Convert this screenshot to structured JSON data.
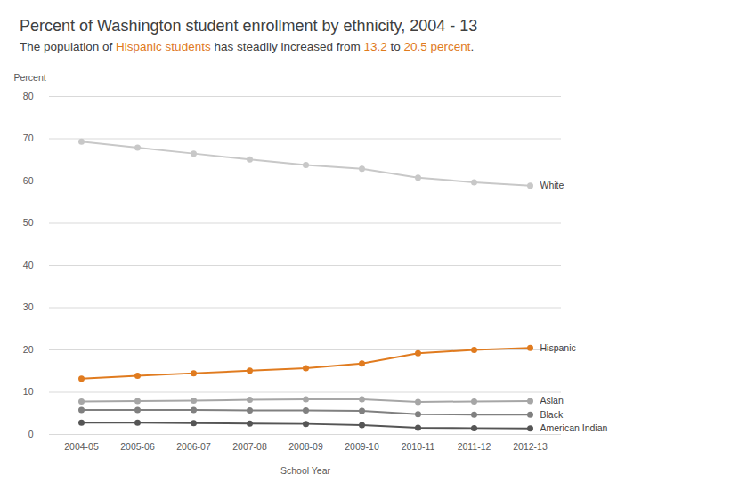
{
  "chart_data": {
    "type": "line",
    "title": "Percent of Washington student enrollment by ethnicity, 2004 - 13",
    "subtitle": [
      {
        "text": "The population of "
      },
      {
        "text": "Hispanic students",
        "color": "#e07b1f"
      },
      {
        "text": " has steadily increased from "
      },
      {
        "text": "13.2",
        "color": "#e07b1f"
      },
      {
        "text": " to "
      },
      {
        "text": "20.5 percent",
        "color": "#e07b1f"
      },
      {
        "text": "."
      }
    ],
    "x_label": "School Year",
    "y_label": "Percent",
    "categories": [
      "2004-05",
      "2005-06",
      "2006-07",
      "2007-08",
      "2008-09",
      "2009-10",
      "2010-11",
      "2011-12",
      "2012-13"
    ],
    "series": [
      {
        "name": "White",
        "color": "#c8c8c8",
        "values": [
          69.3,
          67.9,
          66.5,
          65.1,
          63.8,
          62.9,
          60.8,
          59.7,
          58.9
        ]
      },
      {
        "name": "Hispanic",
        "color": "#e07b1f",
        "values": [
          13.2,
          13.9,
          14.5,
          15.1,
          15.7,
          16.8,
          19.2,
          20.0,
          20.5
        ]
      },
      {
        "name": "Asian",
        "color": "#a6a6a6",
        "values": [
          7.8,
          7.9,
          8.0,
          8.2,
          8.3,
          8.3,
          7.7,
          7.8,
          7.9
        ]
      },
      {
        "name": "Black",
        "color": "#808080",
        "values": [
          5.8,
          5.8,
          5.8,
          5.7,
          5.7,
          5.6,
          4.8,
          4.7,
          4.7
        ]
      },
      {
        "name": "American Indian",
        "color": "#555555",
        "values": [
          2.8,
          2.8,
          2.7,
          2.6,
          2.5,
          2.2,
          1.6,
          1.5,
          1.4
        ]
      }
    ],
    "ylim": [
      0,
      80
    ],
    "yticks": [
      0,
      10,
      20,
      30,
      40,
      50,
      60,
      70,
      80
    ],
    "grid": true,
    "marker": "circle"
  }
}
